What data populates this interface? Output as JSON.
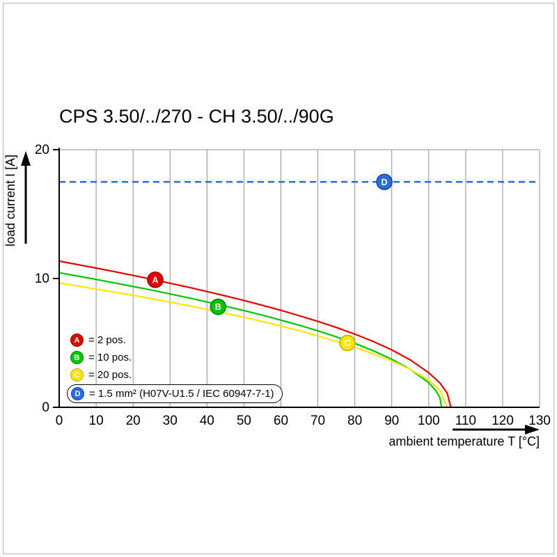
{
  "chart_data": {
    "type": "line",
    "title": "CPS 3.50/../270 - CH 3.50/../90G",
    "xlabel": "ambient temperature T [°C]",
    "ylabel": "load current I [A]",
    "xlim": [
      0,
      130
    ],
    "ylim": [
      0,
      20
    ],
    "x_ticks": [
      0,
      10,
      20,
      30,
      40,
      50,
      60,
      70,
      80,
      90,
      100,
      110,
      120,
      130
    ],
    "y_ticks": [
      0,
      10,
      20
    ],
    "grid": "vertical-only",
    "legend_position": "inside-bottom-left",
    "colors": {
      "grid": "#8f8f8f",
      "axis": "#000000"
    },
    "series": [
      {
        "id": "A",
        "legend_text": "= 2 pos.",
        "color": "#e10000",
        "edge_color": "#9b0000",
        "style": "solid",
        "points": [
          [
            0,
            11.35
          ],
          [
            5,
            11.08
          ],
          [
            10,
            10.81
          ],
          [
            15,
            10.53
          ],
          [
            20,
            10.24
          ],
          [
            25,
            9.94
          ],
          [
            30,
            9.63
          ],
          [
            35,
            9.32
          ],
          [
            40,
            8.99
          ],
          [
            45,
            8.65
          ],
          [
            50,
            8.29
          ],
          [
            55,
            7.92
          ],
          [
            60,
            7.53
          ],
          [
            65,
            7.11
          ],
          [
            70,
            6.67
          ],
          [
            75,
            6.2
          ],
          [
            80,
            5.68
          ],
          [
            85,
            5.11
          ],
          [
            90,
            4.46
          ],
          [
            95,
            3.68
          ],
          [
            100,
            2.68
          ],
          [
            103,
            1.9
          ],
          [
            105,
            1.1
          ],
          [
            106,
            0
          ]
        ],
        "marker": {
          "x": 26,
          "y": 9.9
        }
      },
      {
        "id": "B",
        "legend_text": "= 10 pos.",
        "color": "#00c400",
        "edge_color": "#008000",
        "style": "solid",
        "points": [
          [
            0,
            10.45
          ],
          [
            5,
            10.19
          ],
          [
            10,
            9.93
          ],
          [
            15,
            9.66
          ],
          [
            20,
            9.38
          ],
          [
            25,
            9.1
          ],
          [
            30,
            8.8
          ],
          [
            35,
            8.5
          ],
          [
            40,
            8.18
          ],
          [
            45,
            7.85
          ],
          [
            50,
            7.51
          ],
          [
            55,
            7.15
          ],
          [
            60,
            6.77
          ],
          [
            65,
            6.37
          ],
          [
            70,
            5.94
          ],
          [
            75,
            5.47
          ],
          [
            80,
            4.96
          ],
          [
            85,
            4.39
          ],
          [
            90,
            3.73
          ],
          [
            95,
            2.95
          ],
          [
            100,
            1.91
          ],
          [
            102,
            1.27
          ],
          [
            103,
            0.75
          ],
          [
            103.5,
            0
          ]
        ],
        "marker": {
          "x": 43,
          "y": 7.8
        }
      },
      {
        "id": "C",
        "legend_text": "= 20 pos.",
        "color": "#ffe500",
        "edge_color": "#bfae00",
        "style": "solid",
        "points": [
          [
            0,
            9.65
          ],
          [
            5,
            9.42
          ],
          [
            10,
            9.18
          ],
          [
            15,
            8.94
          ],
          [
            20,
            8.69
          ],
          [
            25,
            8.43
          ],
          [
            30,
            8.16
          ],
          [
            35,
            7.89
          ],
          [
            40,
            7.6
          ],
          [
            45,
            7.3
          ],
          [
            50,
            6.99
          ],
          [
            55,
            6.66
          ],
          [
            60,
            6.31
          ],
          [
            65,
            5.94
          ],
          [
            70,
            5.54
          ],
          [
            75,
            5.11
          ],
          [
            80,
            4.66
          ],
          [
            85,
            4.15
          ],
          [
            90,
            3.6
          ],
          [
            95,
            2.95
          ],
          [
            100,
            2.11
          ],
          [
            103,
            1.33
          ],
          [
            105,
            0
          ]
        ],
        "marker": {
          "x": 78,
          "y": 5.0
        }
      },
      {
        "id": "D",
        "legend_text": "= 1.5 mm² (H07V-U1.5 / IEC 60947-7-1)",
        "color": "#2a6be0",
        "edge_color": "#16469c",
        "style": "dashed",
        "boxed_legend": true,
        "points": [
          [
            0,
            17.5
          ],
          [
            130,
            17.5
          ]
        ],
        "marker": {
          "x": 88,
          "y": 17.5
        }
      }
    ]
  }
}
